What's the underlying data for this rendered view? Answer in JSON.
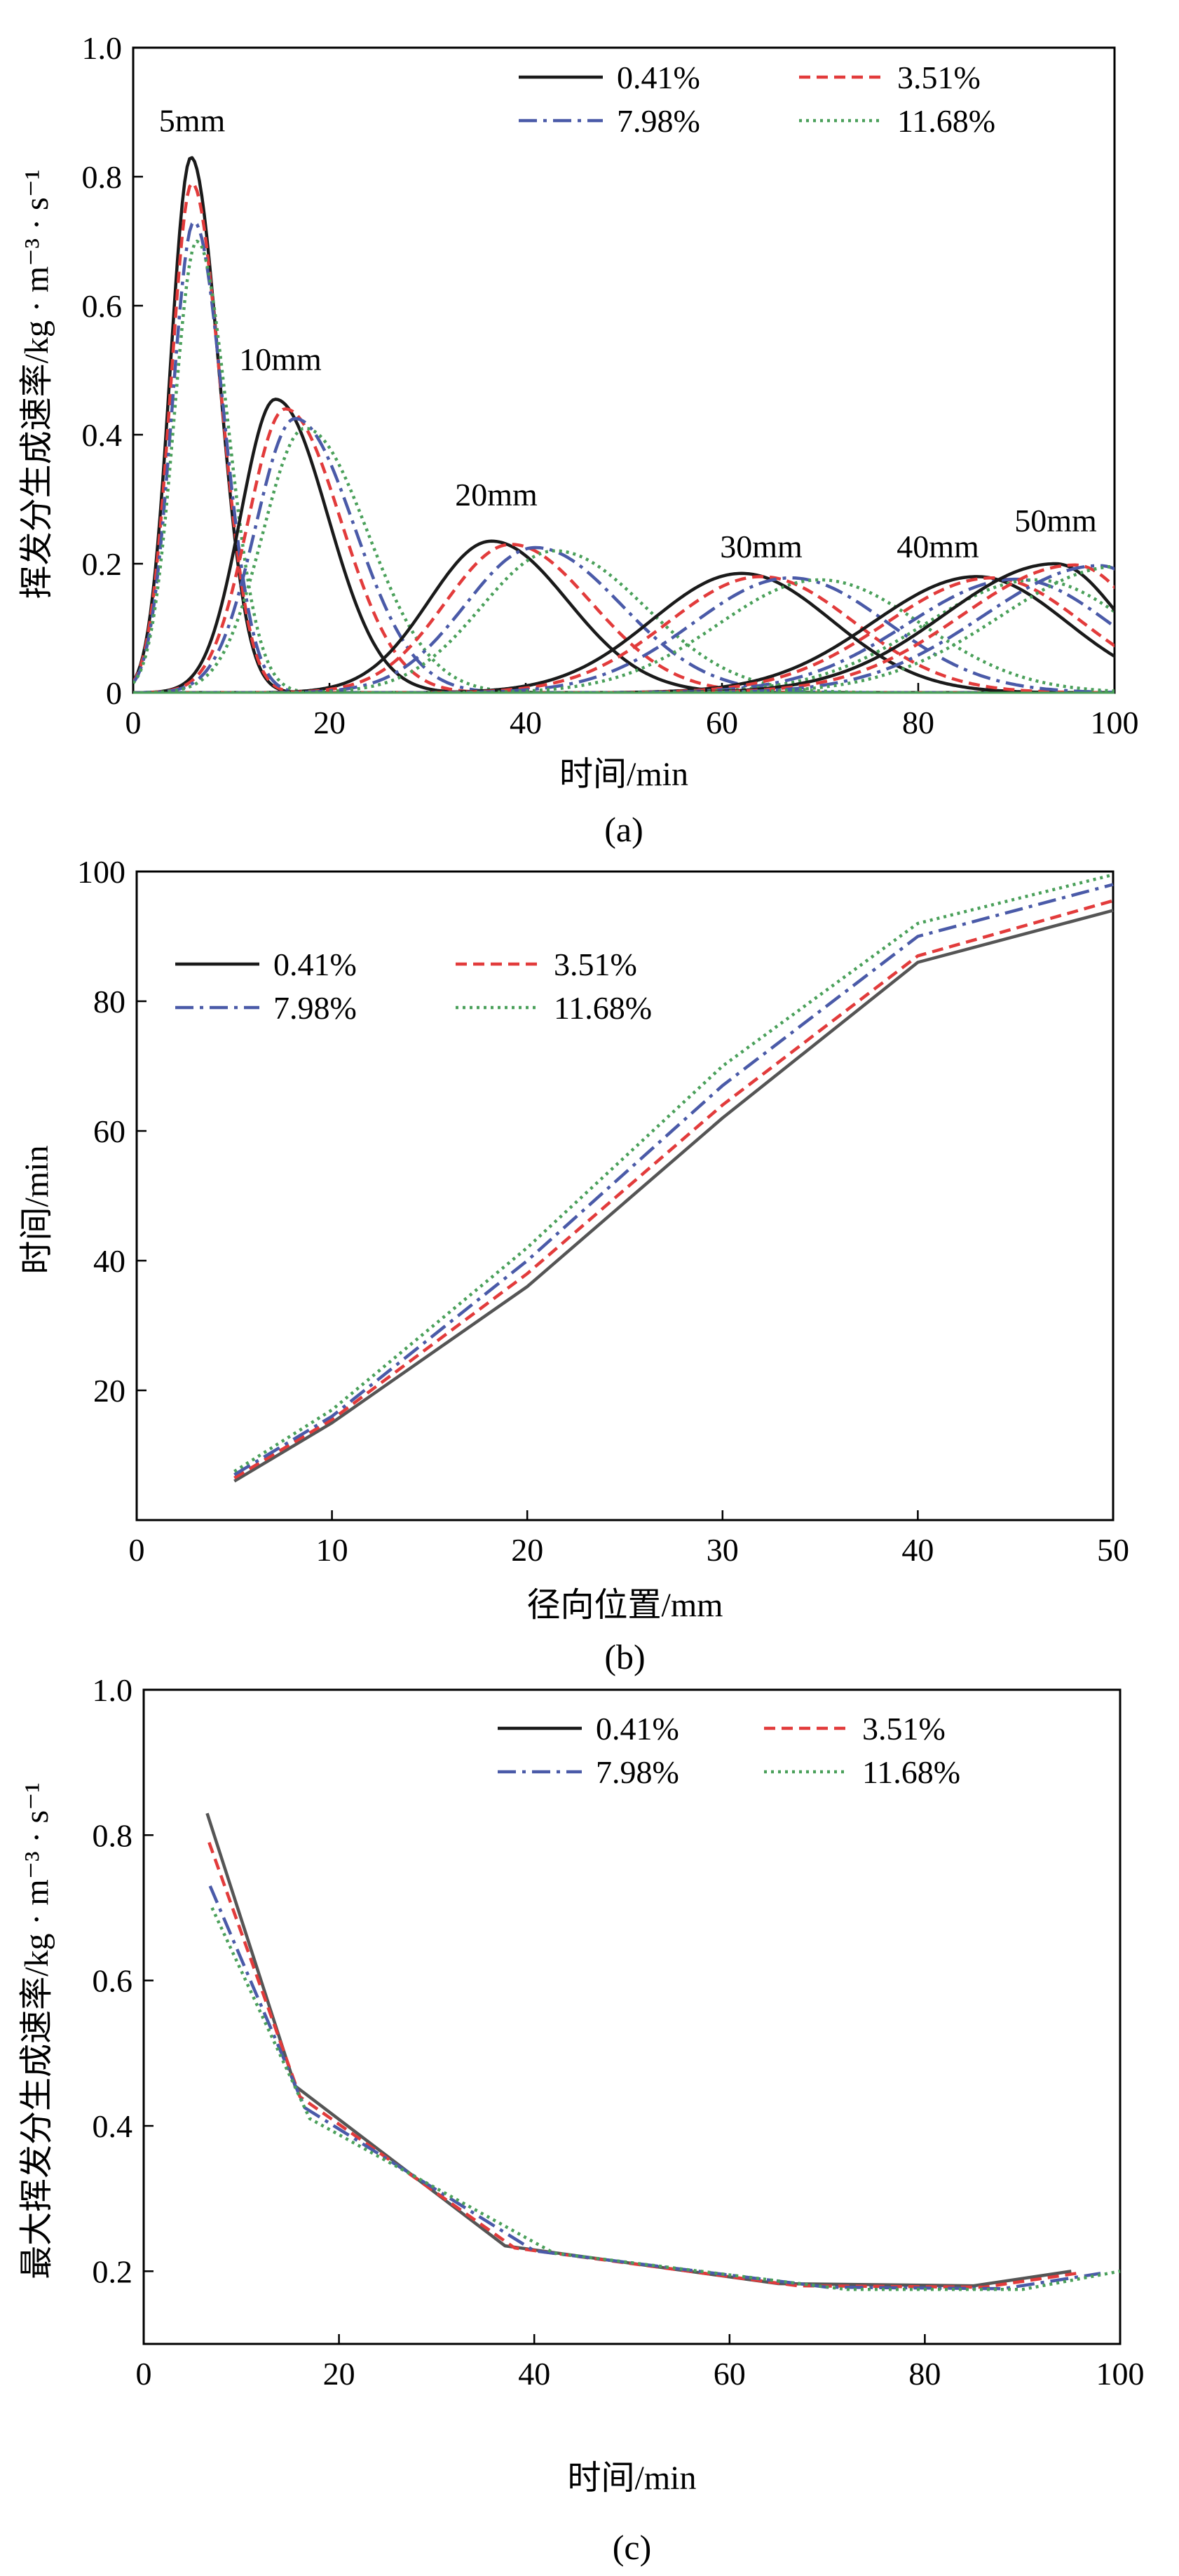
{
  "colors": {
    "c0": "#1a1a1a",
    "c1": "#e23b3b",
    "c2": "#4a5aa8",
    "c3": "#4aa05a",
    "c0b": "#555555"
  },
  "chart_data": [
    {
      "id": "a",
      "type": "line",
      "caption": "(a)",
      "xlabel": "时间/min",
      "ylabel": "挥发分生成速率/kg · m⁻³ · s⁻¹",
      "xlim": [
        0,
        100
      ],
      "ylim": [
        0,
        1.0
      ],
      "xticks": [
        0,
        20,
        40,
        60,
        80,
        100
      ],
      "yticks": [
        0,
        0.2,
        0.4,
        0.6,
        0.8,
        1.0
      ],
      "ytick_labels": [
        "0",
        "0.2",
        "0.4",
        "0.6",
        "0.8",
        "1.0"
      ],
      "legend_position": "top-right",
      "series_names": [
        "0.41%",
        "3.51%",
        "7.98%",
        "11.68%"
      ],
      "series_styles": [
        "solid",
        "dashed",
        "dashdot",
        "dotted"
      ],
      "annotations": [
        {
          "text": "5mm",
          "x": 6,
          "y": 0.87
        },
        {
          "text": "10mm",
          "x": 15,
          "y": 0.5
        },
        {
          "text": "20mm",
          "x": 37,
          "y": 0.29
        },
        {
          "text": "30mm",
          "x": 64,
          "y": 0.21
        },
        {
          "text": "40mm",
          "x": 82,
          "y": 0.21
        },
        {
          "text": "50mm",
          "x": 94,
          "y": 0.25
        }
      ],
      "peaks": [
        {
          "radius": "5mm",
          "t": [
            5.9,
            6.0,
            6.2,
            6.5
          ],
          "v": [
            0.83,
            0.79,
            0.73,
            0.7
          ],
          "rise": 3.0,
          "fall": 4.0
        },
        {
          "radius": "10mm",
          "t": [
            14.5,
            15.5,
            16.5,
            17.5
          ],
          "v": [
            0.455,
            0.44,
            0.425,
            0.41
          ],
          "rise": 5.0,
          "fall": 7.5
        },
        {
          "radius": "20mm",
          "t": [
            36.5,
            38.5,
            41.0,
            43.0
          ],
          "v": [
            0.235,
            0.23,
            0.225,
            0.22
          ],
          "rise": 9.0,
          "fall": 11.0
        },
        {
          "radius": "30mm",
          "t": [
            62.0,
            64.0,
            67.0,
            70.0
          ],
          "v": [
            0.185,
            0.18,
            0.178,
            0.175
          ],
          "rise": 13.0,
          "fall": 13.0
        },
        {
          "radius": "40mm",
          "t": [
            86.0,
            87.5,
            90.0,
            92.0
          ],
          "v": [
            0.18,
            0.178,
            0.176,
            0.175
          ],
          "rise": 15.0,
          "fall": 13.0
        },
        {
          "radius": "50mm",
          "t": [
            94.0,
            96.0,
            98.5,
            100.5
          ],
          "v": [
            0.2,
            0.198,
            0.197,
            0.196
          ],
          "rise": 16.0,
          "fall": 9.0
        }
      ]
    },
    {
      "id": "b",
      "type": "line",
      "caption": "(b)",
      "xlabel": "径向位置/mm",
      "ylabel": "时间/min",
      "xlim": [
        0,
        50
      ],
      "ylim": [
        0,
        100
      ],
      "xticks": [
        0,
        10,
        20,
        30,
        40,
        50
      ],
      "yticks": [
        20,
        40,
        60,
        80,
        100
      ],
      "ytick_labels": [
        "20",
        "40",
        "60",
        "80",
        "100"
      ],
      "legend_position": "top-left",
      "x": [
        5,
        10,
        20,
        30,
        40,
        50
      ],
      "series": [
        {
          "name": "0.41%",
          "style": "solid",
          "values": [
            6,
            15,
            36,
            62,
            86,
            94
          ]
        },
        {
          "name": "3.51%",
          "style": "dashed",
          "values": [
            6.5,
            15.5,
            38,
            64,
            87,
            95.5
          ]
        },
        {
          "name": "7.98%",
          "style": "dashdot",
          "values": [
            7,
            16,
            40,
            67,
            90,
            98
          ]
        },
        {
          "name": "11.68%",
          "style": "dotted",
          "values": [
            7.5,
            17,
            42,
            70,
            92,
            99.5
          ]
        }
      ]
    },
    {
      "id": "c",
      "type": "line",
      "caption": "(c)",
      "xlabel": "时间/min",
      "ylabel": "最大挥发分生成速率/kg · m⁻³ · s⁻¹",
      "xlim": [
        0,
        100
      ],
      "ylim": [
        0.1,
        1.0
      ],
      "xticks": [
        0,
        20,
        40,
        60,
        80,
        100
      ],
      "yticks": [
        0.2,
        0.4,
        0.6,
        0.8,
        1.0
      ],
      "ytick_labels": [
        "0.2",
        "0.4",
        "0.6",
        "0.8",
        "1.0"
      ],
      "legend_position": "top-right",
      "series": [
        {
          "name": "0.41%",
          "style": "solid",
          "x": [
            6.5,
            15.5,
            37,
            65,
            85,
            95
          ],
          "values": [
            0.83,
            0.455,
            0.235,
            0.183,
            0.18,
            0.2
          ]
        },
        {
          "name": "3.51%",
          "style": "dashed",
          "x": [
            6.7,
            16,
            38,
            67,
            86,
            96
          ],
          "values": [
            0.79,
            0.44,
            0.232,
            0.18,
            0.178,
            0.198
          ]
        },
        {
          "name": "7.98%",
          "style": "dashdot",
          "x": [
            6.8,
            16.5,
            40,
            70,
            88,
            98
          ],
          "values": [
            0.73,
            0.425,
            0.228,
            0.178,
            0.176,
            0.197
          ]
        },
        {
          "name": "11.68%",
          "style": "dotted",
          "x": [
            7,
            17,
            42,
            72,
            90,
            100
          ],
          "values": [
            0.7,
            0.41,
            0.225,
            0.175,
            0.175,
            0.2
          ]
        }
      ]
    }
  ]
}
